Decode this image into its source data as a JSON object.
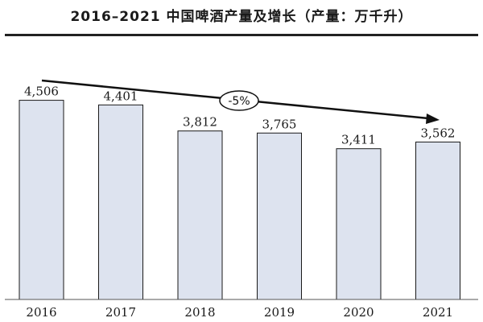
{
  "chart_data": {
    "type": "bar",
    "title": "2016–2021 中国啤酒产量及增长（产量：万千升）",
    "categories": [
      "2016",
      "2017",
      "2018",
      "2019",
      "2020",
      "2021"
    ],
    "values": [
      4506,
      4401,
      3812,
      3765,
      3411,
      3562
    ],
    "value_labels": [
      "4,506",
      "4,401",
      "3,812",
      "3,765",
      "3,411",
      "3,562"
    ],
    "ylim": [
      0,
      5500
    ],
    "grid": false,
    "legend": "none",
    "annotation": {
      "type": "trend-arrow",
      "label": "-5%"
    },
    "colors": {
      "bar_fill": "#dde3ef",
      "bar_stroke": "#1a1a1a",
      "text": "#1a1a1a"
    }
  }
}
